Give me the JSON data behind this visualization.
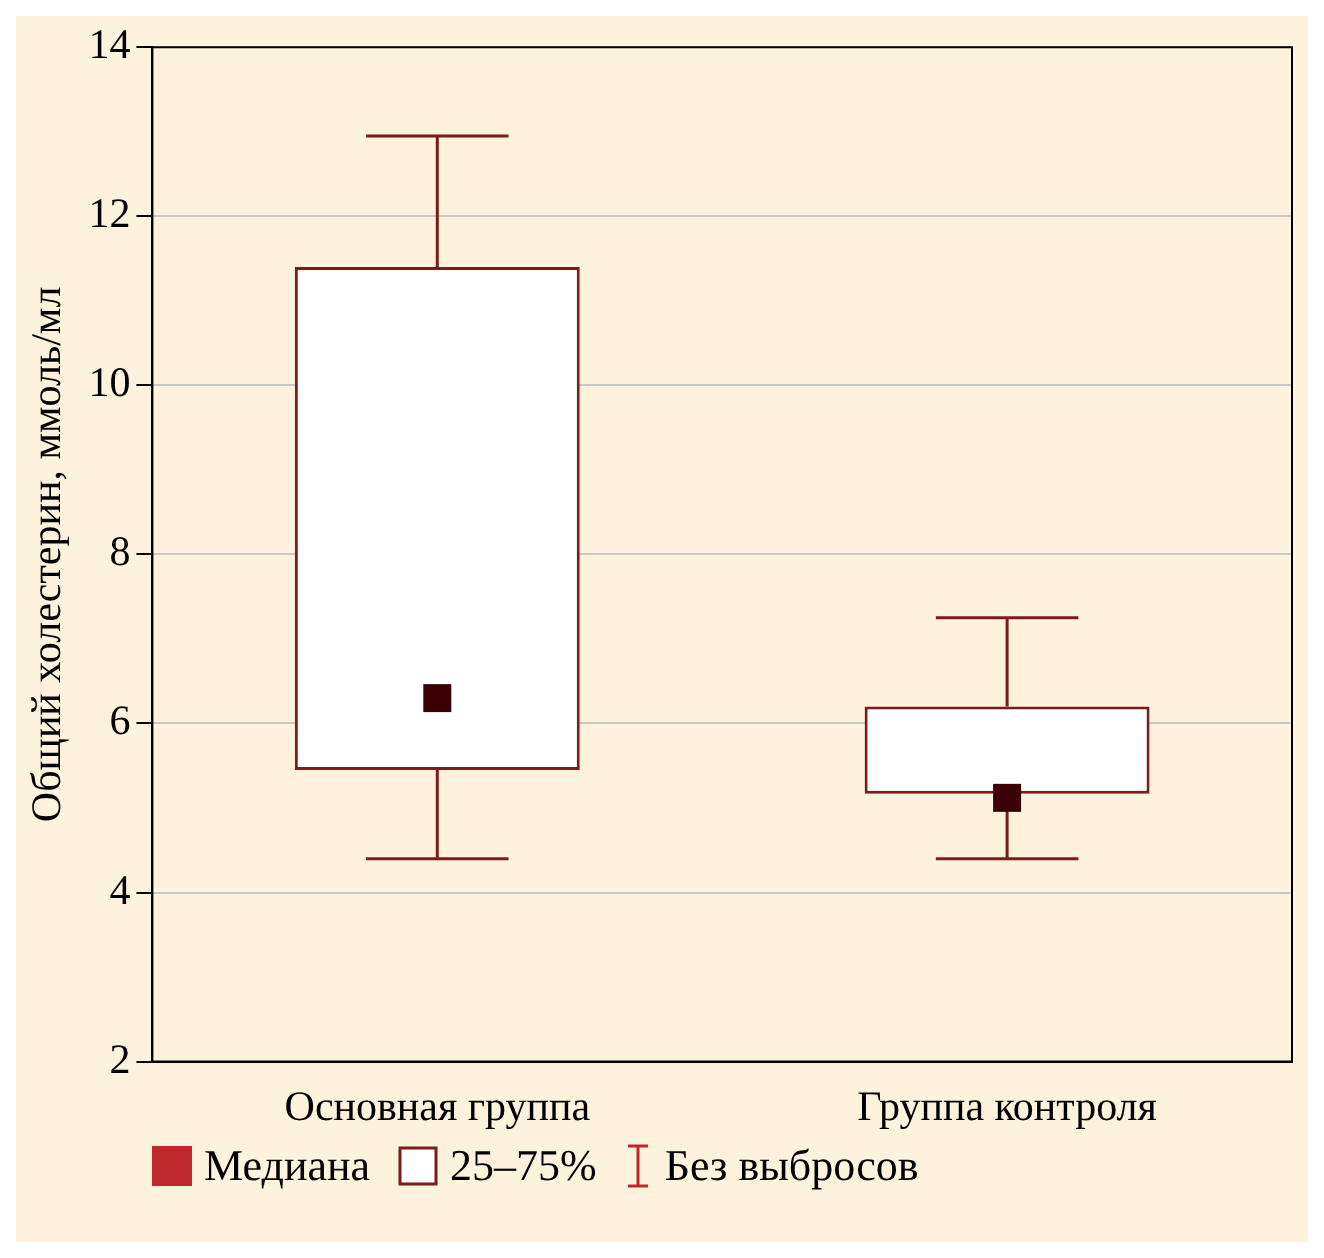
{
  "chart_data": {
    "type": "box",
    "ylabel": "Общий холестерин, ммоль/мл",
    "categories": [
      "Основная группа",
      "Группа контроля"
    ],
    "series": [
      {
        "color": "#7b1c1c",
        "boxes": [
          {
            "low": 4.4,
            "q1": 5.45,
            "median": 6.3,
            "q3": 11.4,
            "high": 12.95
          },
          {
            "low": 4.4,
            "q1": 5.17,
            "median": 5.12,
            "q3": 6.2,
            "high": 7.25
          }
        ]
      }
    ],
    "ylim": [
      2,
      14
    ],
    "yticks": [
      2,
      4,
      6,
      8,
      10,
      12,
      14
    ],
    "grid": "y",
    "annotations": [
      "Медиана",
      "25–75%",
      "Без выбросов"
    ]
  }
}
